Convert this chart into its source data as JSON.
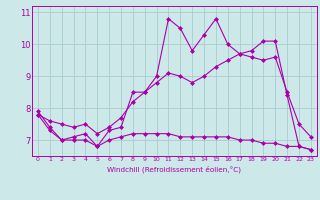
{
  "x": [
    0,
    1,
    2,
    3,
    4,
    5,
    6,
    7,
    8,
    9,
    10,
    11,
    12,
    13,
    14,
    15,
    16,
    17,
    18,
    19,
    20,
    21,
    22,
    23
  ],
  "line_zigzag": [
    7.9,
    7.4,
    7.0,
    7.1,
    7.2,
    6.8,
    7.3,
    7.4,
    8.5,
    8.5,
    9.0,
    10.8,
    10.5,
    9.8,
    10.3,
    10.8,
    10.0,
    9.7,
    9.8,
    10.1,
    10.1,
    8.4,
    6.8,
    6.7
  ],
  "line_upper": [
    7.8,
    7.6,
    7.5,
    7.4,
    7.5,
    7.2,
    7.4,
    7.7,
    8.2,
    8.5,
    8.8,
    9.1,
    9.0,
    8.8,
    9.0,
    9.3,
    9.5,
    9.7,
    9.6,
    9.5,
    9.6,
    8.5,
    7.5,
    7.1
  ],
  "line_lower": [
    7.8,
    7.3,
    7.0,
    7.0,
    7.0,
    6.8,
    7.0,
    7.1,
    7.2,
    7.2,
    7.2,
    7.2,
    7.1,
    7.1,
    7.1,
    7.1,
    7.1,
    7.0,
    7.0,
    6.9,
    6.9,
    6.8,
    6.8,
    6.7
  ],
  "xlabel": "Windchill (Refroidissement éolien,°C)",
  "ylim": [
    6.5,
    11.2
  ],
  "xlim": [
    -0.5,
    23.5
  ],
  "yticks": [
    7,
    8,
    9,
    10,
    11
  ],
  "xticks": [
    0,
    1,
    2,
    3,
    4,
    5,
    6,
    7,
    8,
    9,
    10,
    11,
    12,
    13,
    14,
    15,
    16,
    17,
    18,
    19,
    20,
    21,
    22,
    23
  ],
  "bg_color": "#cce8e8",
  "grid_color": "#aacccc",
  "line_color": "#aa00aa",
  "line_width": 0.8,
  "marker": "D",
  "marker_size": 2.0
}
